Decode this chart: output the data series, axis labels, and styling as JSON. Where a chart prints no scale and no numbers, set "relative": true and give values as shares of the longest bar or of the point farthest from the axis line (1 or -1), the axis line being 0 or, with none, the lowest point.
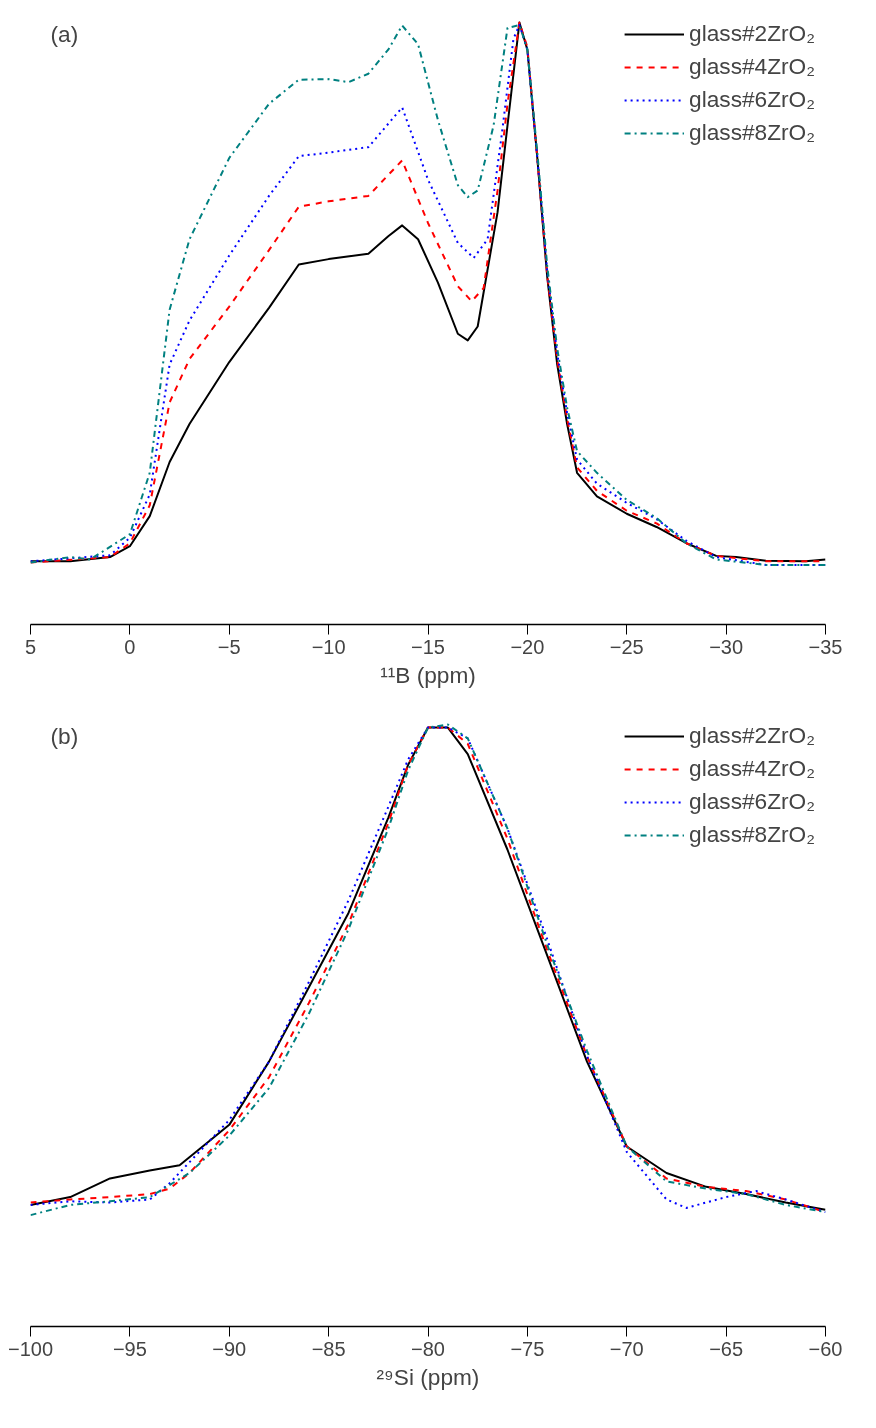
{
  "chart_data": [
    {
      "type": "line",
      "relative": true,
      "annotations": [
        "(a)"
      ],
      "xlabel": "¹¹B (ppm)",
      "xlim": [
        5,
        -35
      ],
      "xticks": [
        5,
        0,
        -5,
        -10,
        -15,
        -20,
        -25,
        -30,
        -35
      ],
      "tick_labels": "x",
      "grid": false,
      "legend": "top right",
      "marker": "none",
      "series": [
        {
          "name": "glass#2ZrO₂",
          "color": "#000000",
          "line_style": "solid",
          "x": [
            5,
            3,
            1,
            0,
            -1,
            -2,
            -3,
            -5,
            -7,
            -8.5,
            -10,
            -12,
            -13,
            -13.7,
            -14.5,
            -15.5,
            -16.5,
            -17,
            -17.5,
            -18.5,
            -19,
            -19.6,
            -20,
            -20.5,
            -21,
            -21.5,
            -22,
            -22.5,
            -23.5,
            -25,
            -26.5,
            -28,
            -29.5,
            -30.5,
            -32,
            -34,
            -35
          ],
          "values": [
            0.105,
            0.105,
            0.112,
            0.13,
            0.18,
            0.27,
            0.333,
            0.436,
            0.526,
            0.598,
            0.607,
            0.616,
            0.645,
            0.663,
            0.64,
            0.568,
            0.483,
            0.472,
            0.495,
            0.685,
            0.829,
            1.0,
            0.955,
            0.775,
            0.577,
            0.432,
            0.333,
            0.252,
            0.213,
            0.184,
            0.162,
            0.135,
            0.114,
            0.112,
            0.106,
            0.105,
            0.108
          ]
        },
        {
          "name": "glass#4ZrO₂",
          "color": "#ff0000",
          "line_style": "dashed",
          "x": [
            5,
            1,
            0,
            -1,
            -2,
            -3,
            -5,
            -7,
            -8.5,
            -10,
            -12,
            -13.7,
            -15,
            -16.5,
            -17.2,
            -17.8,
            -18.5,
            -19,
            -19.6,
            -20,
            -20.5,
            -21,
            -21.5,
            -22,
            -22.5,
            -23.5,
            -25,
            -26.5,
            -28,
            -29.5,
            -32,
            -35
          ],
          "values": [
            0.103,
            0.112,
            0.135,
            0.198,
            0.369,
            0.441,
            0.528,
            0.622,
            0.694,
            0.703,
            0.712,
            0.771,
            0.667,
            0.562,
            0.537,
            0.559,
            0.721,
            0.865,
            1.0,
            0.959,
            0.775,
            0.58,
            0.441,
            0.342,
            0.261,
            0.222,
            0.189,
            0.168,
            0.135,
            0.114,
            0.105,
            0.105
          ]
        },
        {
          "name": "glass#6ZrO₂",
          "color": "#0000ff",
          "line_style": "dotted",
          "x": [
            5,
            1,
            0,
            -1,
            -2,
            -3,
            -5,
            -7,
            -8.5,
            -10,
            -12,
            -13.7,
            -15,
            -16.5,
            -17.3,
            -18,
            -18.7,
            -19.3,
            -19.6,
            -20,
            -20.5,
            -21,
            -21.5,
            -22,
            -22.5,
            -23.5,
            -25,
            -26.5,
            -28,
            -29.5,
            -32,
            -35
          ],
          "values": [
            0.105,
            0.115,
            0.144,
            0.216,
            0.432,
            0.505,
            0.613,
            0.712,
            0.778,
            0.784,
            0.793,
            0.859,
            0.739,
            0.634,
            0.609,
            0.64,
            0.811,
            0.973,
            0.996,
            0.955,
            0.775,
            0.586,
            0.45,
            0.351,
            0.274,
            0.234,
            0.202,
            0.175,
            0.139,
            0.112,
            0.099,
            0.099
          ]
        },
        {
          "name": "glass#8ZrO₂",
          "color": "#008080",
          "line_style": "dashdot",
          "x": [
            5,
            3,
            2,
            0,
            -1,
            -2,
            -3,
            -5,
            -7,
            -8.5,
            -10,
            -11,
            -12,
            -13,
            -13.7,
            -14.5,
            -15.5,
            -16.5,
            -17,
            -17.5,
            -18.3,
            -19,
            -19.6,
            -20,
            -20.5,
            -21,
            -21.5,
            -22,
            -22.5,
            -23.5,
            -25,
            -26.5,
            -28,
            -29.5,
            -32,
            -35
          ],
          "values": [
            0.103,
            0.112,
            0.108,
            0.15,
            0.252,
            0.523,
            0.64,
            0.775,
            0.865,
            0.905,
            0.906,
            0.901,
            0.915,
            0.955,
            0.995,
            0.964,
            0.838,
            0.73,
            0.71,
            0.721,
            0.829,
            0.991,
            0.996,
            0.955,
            0.784,
            0.595,
            0.459,
            0.36,
            0.288,
            0.252,
            0.207,
            0.177,
            0.135,
            0.108,
            0.099,
            0.099
          ]
        }
      ]
    },
    {
      "type": "line",
      "relative": true,
      "annotations": [
        "(b)"
      ],
      "xlabel": "²⁹Si (ppm)",
      "xlim": [
        -100,
        -60
      ],
      "xticks": [
        -100,
        -95,
        -90,
        -85,
        -80,
        -75,
        -70,
        -65,
        -60
      ],
      "tick_labels": "x",
      "grid": false,
      "legend": "top right",
      "marker": "none",
      "series": [
        {
          "name": "glass#2ZrO₂",
          "color": "#000000",
          "line_style": "solid",
          "x": [
            -100,
            -98,
            -96,
            -94,
            -92.5,
            -91,
            -90,
            -88,
            -86,
            -84,
            -82,
            -81,
            -80,
            -79,
            -78,
            -76,
            -74,
            -72,
            -70,
            -68,
            -66,
            -64,
            -62,
            -60
          ],
          "values": [
            0.202,
            0.215,
            0.246,
            0.259,
            0.268,
            0.308,
            0.335,
            0.44,
            0.563,
            0.687,
            0.845,
            0.933,
            0.995,
            0.995,
            0.951,
            0.792,
            0.616,
            0.44,
            0.299,
            0.255,
            0.232,
            0.22,
            0.206,
            0.194
          ]
        },
        {
          "name": "glass#4ZrO₂",
          "color": "#ff0000",
          "line_style": "dashed",
          "x": [
            -100,
            -98,
            -96,
            -94,
            -93,
            -92,
            -90,
            -88,
            -86,
            -84,
            -82,
            -81,
            -80,
            -79,
            -78,
            -76,
            -74,
            -72,
            -70,
            -68,
            -66,
            -64,
            -62,
            -60
          ],
          "values": [
            0.206,
            0.211,
            0.215,
            0.22,
            0.229,
            0.255,
            0.326,
            0.414,
            0.537,
            0.669,
            0.836,
            0.933,
            0.995,
            0.995,
            0.968,
            0.81,
            0.625,
            0.449,
            0.299,
            0.246,
            0.232,
            0.225,
            0.211,
            0.19
          ]
        },
        {
          "name": "glass#6ZrO₂",
          "color": "#0000ff",
          "line_style": "dotted",
          "x": [
            -100,
            -98,
            -96,
            -94,
            -93,
            -92,
            -90,
            -88,
            -86,
            -84,
            -82,
            -81,
            -80,
            -79,
            -78,
            -76,
            -74,
            -72,
            -70,
            -68,
            -67,
            -65,
            -63.5,
            -62,
            -60
          ],
          "values": [
            0.202,
            0.208,
            0.206,
            0.211,
            0.238,
            0.273,
            0.343,
            0.44,
            0.572,
            0.708,
            0.863,
            0.942,
            0.995,
            0.995,
            0.977,
            0.827,
            0.643,
            0.449,
            0.29,
            0.211,
            0.197,
            0.215,
            0.225,
            0.211,
            0.19
          ]
        },
        {
          "name": "glass#8ZrO₂",
          "color": "#008080",
          "line_style": "dashdot",
          "x": [
            -100,
            -98,
            -96,
            -94,
            -92,
            -90,
            -88,
            -86,
            -84,
            -82,
            -81,
            -80,
            -79,
            -78,
            -76,
            -74,
            -72,
            -70,
            -68,
            -66,
            -64,
            -62,
            -60
          ],
          "values": [
            0.185,
            0.202,
            0.208,
            0.215,
            0.255,
            0.317,
            0.396,
            0.519,
            0.66,
            0.827,
            0.924,
            0.995,
            1.0,
            0.977,
            0.827,
            0.634,
            0.458,
            0.299,
            0.241,
            0.229,
            0.22,
            0.202,
            0.19
          ]
        }
      ]
    }
  ]
}
